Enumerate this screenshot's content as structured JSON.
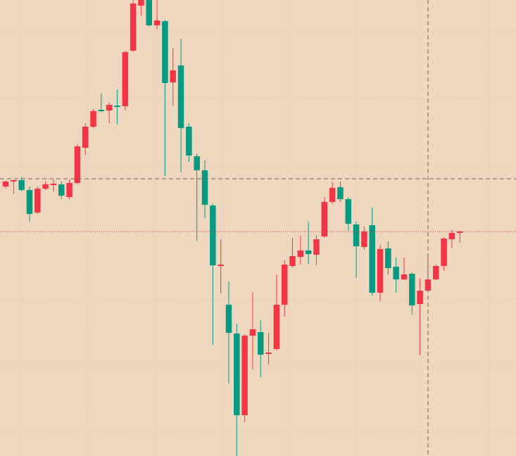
{
  "chart_data": {
    "type": "candlestick",
    "up_color": "#f23645",
    "down_color": "#089981",
    "open": [
      383,
      390,
      392,
      378,
      346,
      380,
      385,
      386,
      368,
      388,
      438,
      468,
      492,
      491,
      498,
      497,
      576,
      640,
      648,
      612,
      618,
      531,
      555,
      468,
      426,
      406,
      356,
      270,
      215,
      174,
      58,
      171,
      176,
      145,
      152,
      215,
      270,
      283,
      292,
      286,
      312,
      361,
      382,
      365,
      329,
      297,
      328,
      232,
      295,
      269,
      251,
      259,
      216,
      235,
      251,
      270,
      308,
      317
    ],
    "high": [
      392,
      393,
      397,
      383,
      383,
      390,
      393,
      390,
      393,
      443,
      473,
      493,
      515,
      503,
      521,
      576,
      648,
      648,
      648,
      648,
      620,
      580,
      593,
      473,
      430,
      420,
      358,
      308,
      248,
      188,
      173,
      233,
      193,
      175,
      258,
      278,
      310,
      313,
      333,
      314,
      368,
      390,
      390,
      368,
      333,
      326,
      353,
      300,
      305,
      282,
      282,
      261,
      252,
      283,
      272,
      311,
      322,
      320
    ],
    "low": [
      380,
      372,
      376,
      333,
      344,
      378,
      376,
      365,
      365,
      386,
      428,
      466,
      488,
      473,
      471,
      491,
      574,
      626,
      610,
      606,
      398,
      498,
      403,
      418,
      306,
      338,
      158,
      231,
      103,
      0,
      48,
      123,
      112,
      130,
      150,
      198,
      268,
      272,
      273,
      271,
      310,
      358,
      361,
      320,
      253,
      293,
      228,
      220,
      258,
      232,
      250,
      201,
      143,
      233,
      250,
      263,
      295,
      303
    ],
    "close": [
      390,
      392,
      378,
      344,
      380,
      386,
      387,
      370,
      388,
      440,
      468,
      490,
      490,
      499,
      496,
      574,
      643,
      648,
      612,
      619,
      530,
      548,
      466,
      427,
      406,
      357,
      271,
      272,
      175,
      58,
      171,
      180,
      144,
      147,
      215,
      272,
      284,
      292,
      287,
      308,
      361,
      381,
      365,
      330,
      298,
      319,
      232,
      294,
      267,
      251,
      258,
      214,
      235,
      251,
      270,
      309,
      317,
      319
    ],
    "ylim": [
      0,
      648
    ],
    "crosshair": {
      "x": 53,
      "y": 394
    },
    "last_price_line": true,
    "grid": true
  }
}
